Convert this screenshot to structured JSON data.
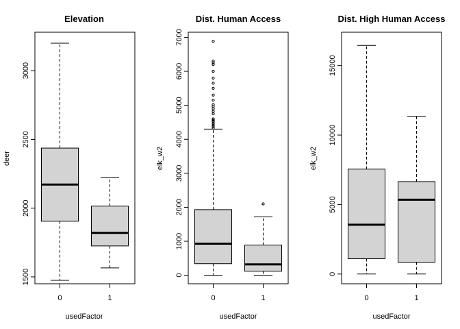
{
  "chart_data": [
    {
      "type": "boxplot",
      "title": "Elevation",
      "xlabel": "usedFactor",
      "ylabel": "deer",
      "categories": [
        "0",
        "1"
      ],
      "ylim": [
        1450,
        3280
      ],
      "yticks": [
        1500,
        2000,
        2500,
        3000
      ],
      "boxes": [
        {
          "category": "0",
          "min": 1475,
          "q1": 1905,
          "median": 2172,
          "q3": 2437,
          "max": 3200,
          "outliers": []
        },
        {
          "category": "1",
          "min": 1565,
          "q1": 1725,
          "median": 1820,
          "q3": 2015,
          "max": 2225,
          "outliers": []
        }
      ],
      "grid": false
    },
    {
      "type": "boxplot",
      "title": "Dist. Human Access",
      "xlabel": "usedFactor",
      "ylabel": "elk_w2",
      "categories": [
        "0",
        "1"
      ],
      "ylim": [
        -250,
        7150
      ],
      "yticks": [
        0,
        1000,
        2000,
        3000,
        4000,
        5000,
        6000,
        7000
      ],
      "boxes": [
        {
          "category": "0",
          "min": 0,
          "q1": 340,
          "median": 930,
          "q3": 1930,
          "max": 4300,
          "outliers": [
            4330,
            4380,
            4420,
            4470,
            4520,
            4560,
            4600,
            4750,
            4820,
            4900,
            4960,
            5020,
            5150,
            5300,
            5500,
            5650,
            5800,
            6000,
            6200,
            6250,
            6300,
            6880
          ]
        },
        {
          "category": "1",
          "min": 0,
          "q1": 120,
          "median": 320,
          "q3": 890,
          "max": 1720,
          "outliers": [
            2100
          ]
        }
      ],
      "grid": false
    },
    {
      "type": "boxplot",
      "title": "Dist. High Human Access",
      "xlabel": "usedFactor",
      "ylabel": "elk_w2",
      "categories": [
        "0",
        "1"
      ],
      "ylim": [
        -700,
        17400
      ],
      "yticks": [
        0,
        5000,
        10000,
        15000
      ],
      "boxes": [
        {
          "category": "0",
          "min": 0,
          "q1": 1100,
          "median": 3550,
          "q3": 7550,
          "max": 16450,
          "outliers": []
        },
        {
          "category": "1",
          "min": 0,
          "q1": 850,
          "median": 5350,
          "q3": 6650,
          "max": 11350,
          "outliers": []
        }
      ],
      "grid": false
    }
  ],
  "colors": {
    "box_fill": "#d3d3d3",
    "stroke": "#000000",
    "background": "#ffffff"
  }
}
